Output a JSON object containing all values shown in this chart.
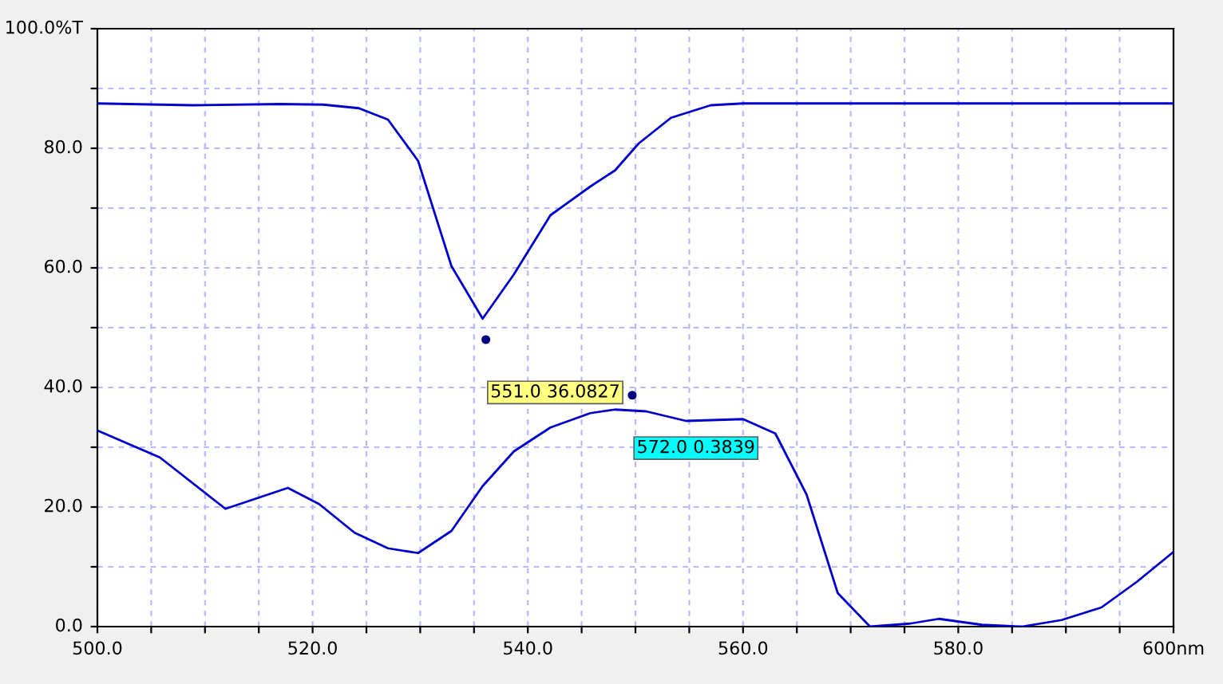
{
  "chart_data": {
    "type": "line",
    "series": [
      {
        "color": "#0000cc",
        "x": [
          500,
          508.8,
          517,
          521,
          524.3,
          527,
          529.8,
          532.9,
          535.8,
          538.7,
          542.1,
          545.8,
          548.1,
          550.3,
          553.3,
          557,
          560,
          600
        ],
        "values": [
          87.5,
          87.2,
          87.4,
          87.3,
          86.7,
          84.8,
          77.9,
          60.3,
          51.5,
          58.9,
          68.8,
          73.6,
          76.3,
          80.8,
          85.1,
          87.2,
          87.5,
          87.5
        ]
      },
      {
        "color": "#0000cc",
        "x": [
          500,
          505.8,
          511.9,
          517.7,
          520.6,
          523.9,
          527,
          529.8,
          532.9,
          535.8,
          538.7,
          542.1,
          545.8,
          548.1,
          551,
          554.7,
          560,
          563,
          565.9,
          568.8,
          571.8,
          575.5,
          578.2,
          582.2,
          585.9,
          589.6,
          593.3,
          596.6,
          600
        ],
        "values": [
          32.8,
          28.3,
          19.7,
          23.2,
          20.5,
          15.7,
          13.1,
          12.3,
          16,
          23.5,
          29.3,
          33.3,
          35.7,
          36.3,
          36,
          34.4,
          34.7,
          32.3,
          22.1,
          5.6,
          0,
          0.5,
          1.3,
          0.3,
          0,
          1.1,
          3.2,
          7.5,
          12.5
        ]
      }
    ],
    "annotations": [
      {
        "text": "551.0 36.0827",
        "x": 536.1,
        "y": 48.0
      },
      {
        "text": "572.0 0.3839",
        "x": 549.7,
        "y": 38.7
      }
    ],
    "xlim": [
      500,
      600
    ],
    "ylim": [
      0,
      100
    ],
    "xticks": [
      {
        "value": 500,
        "label": "500.0"
      },
      {
        "value": 505,
        "label": null
      },
      {
        "value": 510,
        "label": null
      },
      {
        "value": 515,
        "label": null
      },
      {
        "value": 520,
        "label": "520.0"
      },
      {
        "value": 525,
        "label": null
      },
      {
        "value": 530,
        "label": null
      },
      {
        "value": 535,
        "label": null
      },
      {
        "value": 540,
        "label": "540.0"
      },
      {
        "value": 545,
        "label": null
      },
      {
        "value": 550,
        "label": null
      },
      {
        "value": 555,
        "label": null
      },
      {
        "value": 560,
        "label": "560.0"
      },
      {
        "value": 565,
        "label": null
      },
      {
        "value": 570,
        "label": null
      },
      {
        "value": 575,
        "label": null
      },
      {
        "value": 580,
        "label": "580.0"
      },
      {
        "value": 585,
        "label": null
      },
      {
        "value": 590,
        "label": null
      },
      {
        "value": 595,
        "label": null
      },
      {
        "value": 600,
        "label": "600nm"
      }
    ],
    "yticks": [
      {
        "value": 0,
        "label": "0.0"
      },
      {
        "value": 10,
        "label": null
      },
      {
        "value": 20,
        "label": "20.0"
      },
      {
        "value": 30,
        "label": null
      },
      {
        "value": 40,
        "label": "40.0"
      },
      {
        "value": 50,
        "label": null
      },
      {
        "value": 60,
        "label": "60.0"
      },
      {
        "value": 70,
        "label": null
      },
      {
        "value": 80,
        "label": "80.0"
      },
      {
        "value": 90,
        "label": null
      },
      {
        "value": 100,
        "label": "100.0%T"
      }
    ],
    "grid": true,
    "marker": "none",
    "line_style": "solid"
  }
}
